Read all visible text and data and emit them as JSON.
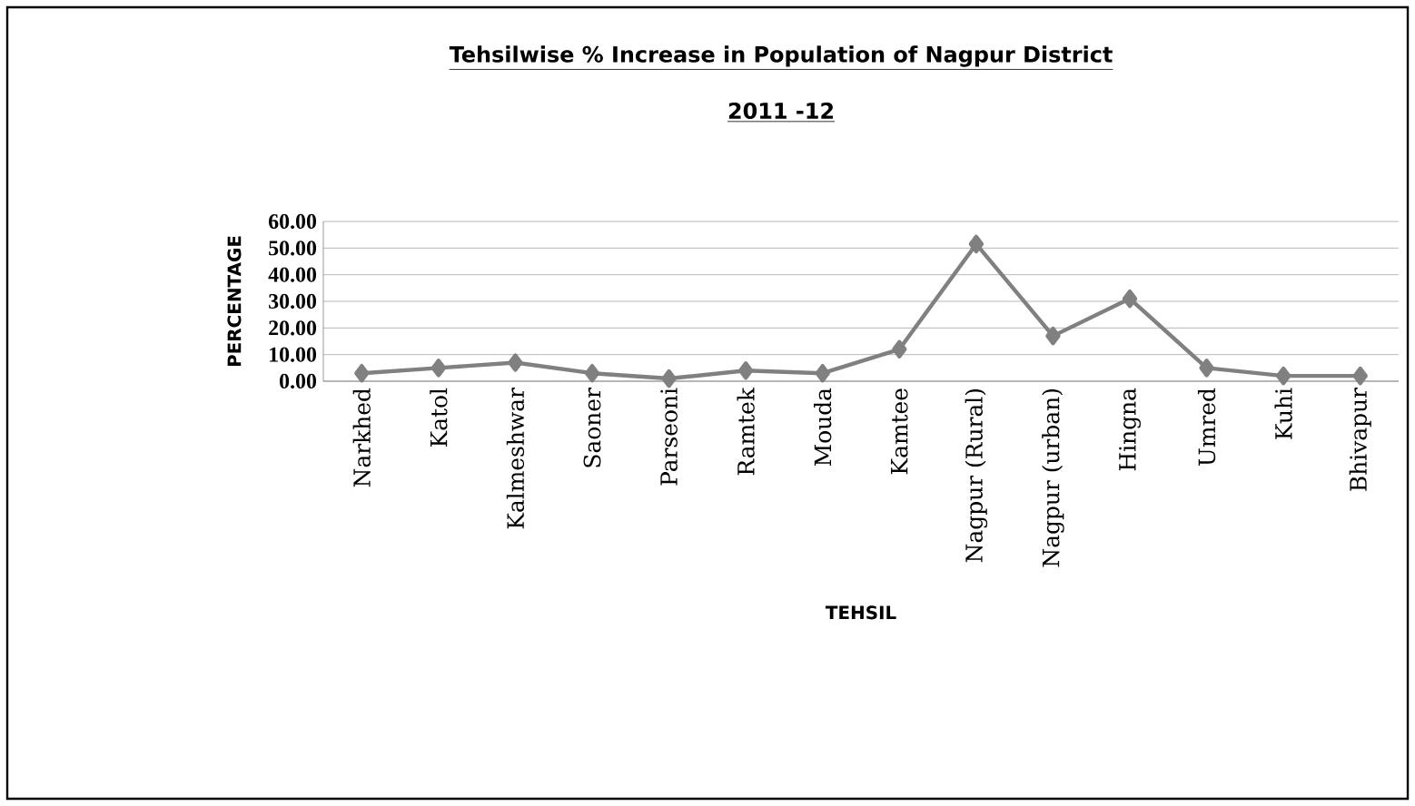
{
  "chart_data": {
    "type": "line",
    "title": "Tehsilwise % Increase in Population of  Nagpur District",
    "subtitle": "2011 -12",
    "xlabel": "TEHSIL",
    "ylabel": "PERCENTAGE",
    "categories": [
      "Narkhed",
      "Katol",
      "Kalmeshwar",
      "Saoner",
      "Parseoni",
      "Ramtek",
      "Mouda",
      "Kamtee",
      "Nagpur (Rural)",
      "Nagpur (urban)",
      "Hingna",
      "Umred",
      "Kuhi",
      "Bhivapur"
    ],
    "values": [
      3,
      5,
      7,
      3,
      1,
      4,
      3,
      12,
      51.5,
      17,
      31,
      5,
      2,
      2
    ],
    "color": "#808080",
    "marker": "diamond",
    "grid": "y",
    "ylim": [
      0,
      60
    ],
    "yticks": [
      {
        "value": 0,
        "label": "0.00"
      },
      {
        "value": 10,
        "label": "10.00"
      },
      {
        "value": 20,
        "label": "20.00"
      },
      {
        "value": 30,
        "label": "30.00"
      },
      {
        "value": 40,
        "label": "40.00"
      },
      {
        "value": 50,
        "label": "50.00"
      },
      {
        "value": 60,
        "label": "60.00"
      }
    ]
  }
}
